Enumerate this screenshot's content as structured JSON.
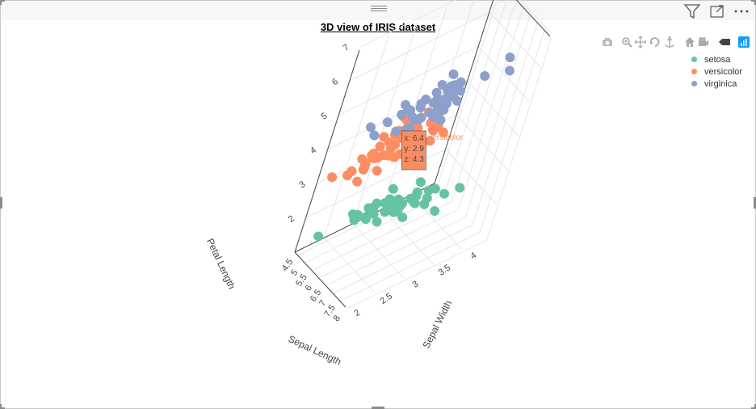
{
  "chart_data": {
    "type": "scatter",
    "title": "3D view of IRIS dataset",
    "axes": {
      "x": {
        "label": "Sepal Length",
        "ticks": [
          "4.5",
          "5",
          "5.5",
          "6",
          "6.5",
          "7",
          "7.5",
          "8"
        ]
      },
      "y": {
        "label": "Sepal Width",
        "ticks": [
          "2",
          "2.5",
          "3",
          "3.5",
          "4"
        ]
      },
      "z": {
        "label": "Petal Length",
        "ticks": [
          "2",
          "3",
          "4",
          "5",
          "6",
          "7"
        ]
      }
    },
    "legend_position": "top-right",
    "series": [
      {
        "name": "setosa",
        "color": "#66c2a5",
        "points": [
          [
            5.1,
            3.5,
            1.4
          ],
          [
            4.9,
            3.0,
            1.4
          ],
          [
            4.7,
            3.2,
            1.3
          ],
          [
            4.6,
            3.1,
            1.5
          ],
          [
            5.0,
            3.6,
            1.4
          ],
          [
            5.4,
            3.9,
            1.7
          ],
          [
            4.6,
            3.4,
            1.4
          ],
          [
            5.0,
            3.4,
            1.5
          ],
          [
            4.4,
            2.9,
            1.4
          ],
          [
            4.9,
            3.1,
            1.5
          ],
          [
            5.4,
            3.7,
            1.5
          ],
          [
            4.8,
            3.4,
            1.6
          ],
          [
            4.8,
            3.0,
            1.4
          ],
          [
            4.3,
            3.0,
            1.1
          ],
          [
            5.8,
            4.0,
            1.2
          ],
          [
            5.7,
            4.4,
            1.5
          ],
          [
            5.4,
            3.9,
            1.3
          ],
          [
            5.1,
            3.5,
            1.4
          ],
          [
            5.7,
            3.8,
            1.7
          ],
          [
            5.1,
            3.8,
            1.5
          ],
          [
            5.4,
            3.4,
            1.7
          ],
          [
            5.1,
            3.7,
            1.5
          ],
          [
            4.6,
            3.6,
            1.0
          ],
          [
            5.1,
            3.3,
            1.7
          ],
          [
            4.8,
            3.4,
            1.9
          ],
          [
            5.0,
            3.0,
            1.6
          ],
          [
            5.0,
            3.4,
            1.6
          ],
          [
            5.2,
            3.5,
            1.5
          ],
          [
            5.2,
            3.4,
            1.4
          ],
          [
            4.7,
            3.2,
            1.6
          ],
          [
            4.8,
            3.1,
            1.6
          ],
          [
            5.4,
            3.4,
            1.5
          ],
          [
            5.2,
            4.1,
            1.5
          ],
          [
            5.5,
            4.2,
            1.4
          ],
          [
            4.9,
            3.1,
            1.5
          ],
          [
            5.0,
            3.2,
            1.2
          ],
          [
            5.5,
            3.5,
            1.3
          ],
          [
            4.4,
            3.0,
            1.3
          ],
          [
            5.1,
            3.4,
            1.5
          ],
          [
            5.0,
            3.5,
            1.3
          ],
          [
            4.5,
            2.3,
            1.3
          ],
          [
            4.4,
            3.2,
            1.3
          ],
          [
            5.0,
            3.5,
            1.6
          ],
          [
            5.1,
            3.8,
            1.9
          ],
          [
            4.8,
            3.0,
            1.4
          ],
          [
            5.1,
            3.8,
            1.6
          ],
          [
            4.6,
            3.2,
            1.4
          ],
          [
            5.3,
            3.7,
            1.5
          ],
          [
            5.0,
            3.3,
            1.4
          ]
        ]
      },
      {
        "name": "versicolor",
        "color": "#fc8d62",
        "points": [
          [
            7.0,
            3.2,
            4.7
          ],
          [
            6.4,
            3.2,
            4.5
          ],
          [
            6.9,
            3.1,
            4.9
          ],
          [
            5.5,
            2.3,
            4.0
          ],
          [
            6.5,
            2.8,
            4.6
          ],
          [
            5.7,
            2.8,
            4.5
          ],
          [
            6.3,
            3.3,
            4.7
          ],
          [
            4.9,
            2.4,
            3.3
          ],
          [
            6.6,
            2.9,
            4.6
          ],
          [
            5.2,
            2.7,
            3.9
          ],
          [
            5.0,
            2.0,
            3.5
          ],
          [
            5.9,
            3.0,
            4.2
          ],
          [
            6.0,
            2.2,
            4.0
          ],
          [
            6.1,
            2.9,
            4.7
          ],
          [
            5.6,
            2.9,
            3.6
          ],
          [
            6.7,
            3.1,
            4.4
          ],
          [
            5.6,
            3.0,
            4.5
          ],
          [
            5.8,
            2.7,
            4.1
          ],
          [
            6.2,
            2.2,
            4.5
          ],
          [
            5.6,
            2.5,
            3.9
          ],
          [
            5.9,
            3.2,
            4.8
          ],
          [
            6.1,
            2.8,
            4.0
          ],
          [
            6.3,
            2.5,
            4.9
          ],
          [
            6.1,
            2.8,
            4.7
          ],
          [
            6.4,
            2.9,
            4.3
          ],
          [
            6.6,
            3.0,
            4.4
          ],
          [
            6.8,
            2.8,
            4.8
          ],
          [
            6.7,
            3.0,
            5.0
          ],
          [
            6.0,
            2.9,
            4.5
          ],
          [
            5.7,
            2.6,
            3.5
          ],
          [
            5.5,
            2.4,
            3.8
          ],
          [
            5.5,
            2.4,
            3.7
          ],
          [
            5.8,
            2.7,
            3.9
          ],
          [
            6.0,
            2.7,
            5.1
          ],
          [
            5.4,
            3.0,
            4.5
          ],
          [
            6.0,
            3.4,
            4.5
          ],
          [
            6.7,
            3.1,
            4.7
          ],
          [
            6.3,
            2.3,
            4.4
          ],
          [
            5.6,
            3.0,
            4.1
          ],
          [
            5.5,
            2.5,
            4.0
          ],
          [
            5.5,
            2.6,
            4.4
          ],
          [
            6.1,
            3.0,
            4.6
          ],
          [
            5.8,
            2.6,
            4.0
          ],
          [
            5.0,
            2.3,
            3.3
          ],
          [
            5.6,
            2.7,
            4.2
          ],
          [
            5.7,
            3.0,
            4.2
          ],
          [
            5.7,
            2.9,
            4.2
          ],
          [
            6.2,
            2.9,
            4.3
          ],
          [
            5.1,
            2.5,
            3.0
          ],
          [
            5.7,
            2.8,
            4.1
          ]
        ]
      },
      {
        "name": "virginica",
        "color": "#8da0cb",
        "points": [
          [
            6.3,
            3.3,
            6.0
          ],
          [
            5.8,
            2.7,
            5.1
          ],
          [
            7.1,
            3.0,
            5.9
          ],
          [
            6.3,
            2.9,
            5.6
          ],
          [
            6.5,
            3.0,
            5.8
          ],
          [
            7.6,
            3.0,
            6.6
          ],
          [
            4.9,
            2.5,
            4.5
          ],
          [
            7.3,
            2.9,
            6.3
          ],
          [
            6.7,
            2.5,
            5.8
          ],
          [
            7.2,
            3.6,
            6.1
          ],
          [
            6.5,
            3.2,
            5.1
          ],
          [
            6.4,
            2.7,
            5.3
          ],
          [
            6.8,
            3.0,
            5.5
          ],
          [
            5.7,
            2.5,
            5.0
          ],
          [
            5.8,
            2.8,
            5.1
          ],
          [
            6.4,
            3.2,
            5.3
          ],
          [
            6.5,
            3.0,
            5.5
          ],
          [
            7.7,
            3.8,
            6.7
          ],
          [
            7.7,
            2.6,
            6.9
          ],
          [
            6.0,
            2.2,
            5.0
          ],
          [
            6.9,
            3.2,
            5.7
          ],
          [
            5.6,
            2.8,
            4.9
          ],
          [
            7.7,
            2.8,
            6.7
          ],
          [
            6.3,
            2.7,
            4.9
          ],
          [
            6.7,
            3.3,
            5.7
          ],
          [
            7.2,
            3.2,
            6.0
          ],
          [
            6.2,
            2.8,
            4.8
          ],
          [
            6.1,
            3.0,
            4.9
          ],
          [
            6.4,
            2.8,
            5.6
          ],
          [
            7.2,
            3.0,
            5.8
          ],
          [
            7.4,
            2.8,
            6.1
          ],
          [
            7.9,
            3.8,
            6.4
          ],
          [
            6.4,
            2.8,
            5.6
          ],
          [
            6.3,
            2.8,
            5.1
          ],
          [
            6.1,
            2.6,
            5.6
          ],
          [
            7.7,
            3.0,
            6.1
          ],
          [
            6.3,
            3.4,
            5.6
          ],
          [
            6.4,
            3.1,
            5.5
          ],
          [
            6.0,
            3.0,
            4.8
          ],
          [
            6.9,
            3.1,
            5.4
          ],
          [
            6.7,
            3.1,
            5.6
          ],
          [
            6.9,
            3.1,
            5.1
          ],
          [
            6.8,
            3.2,
            5.9
          ],
          [
            6.7,
            3.3,
            5.7
          ],
          [
            6.7,
            3.0,
            5.2
          ],
          [
            6.3,
            2.5,
            5.0
          ],
          [
            6.5,
            3.0,
            5.2
          ],
          [
            6.2,
            3.4,
            5.4
          ],
          [
            5.9,
            3.0,
            5.1
          ]
        ]
      }
    ],
    "hover": {
      "series": "versicolor",
      "x": "6.4",
      "y": "2.9",
      "z": "4.3",
      "lines": [
        "x: 6.4",
        "y: 2.9",
        "z: 4.3"
      ],
      "label": "versicolor",
      "color": "#fc8d62"
    }
  },
  "toolbar": {
    "icons": [
      "filter-icon",
      "focus-mode-icon",
      "more-options-icon"
    ]
  },
  "modebar": {
    "icons": [
      "camera-icon",
      "zoom-icon",
      "pan-icon",
      "orbit-icon",
      "turntable-icon",
      "home-icon",
      "camera-reset-icon",
      "hover-toggle-icon",
      "plotly-logo-icon"
    ]
  }
}
